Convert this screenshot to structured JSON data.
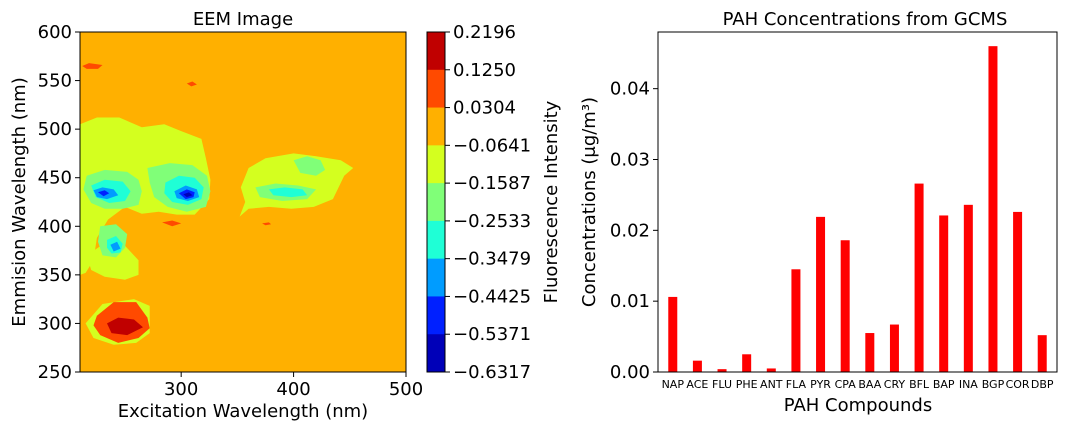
{
  "chart_data": [
    {
      "type": "contour",
      "title": "EEM Image",
      "xlabel": "Excitation Wavelength (nm)",
      "ylabel": "Emmision Wavelength (nm)",
      "xlim": [
        210,
        500
      ],
      "ylim": [
        250,
        600
      ],
      "xticks": [
        300,
        400,
        500
      ],
      "yticks": [
        250,
        300,
        350,
        400,
        450,
        500,
        550,
        600
      ],
      "background_level_color": "#ffb000",
      "colorbar": {
        "label": "Fluorescence Intensity",
        "tick_labels": [
          "0.2196",
          "0.1250",
          "0.0304",
          "−0.0641",
          "−0.1587",
          "−0.2533",
          "−0.3479",
          "−0.4425",
          "−0.5371",
          "−0.6317"
        ],
        "band_colors_top_to_bottom": [
          "#c00000",
          "#ff4a00",
          "#ffb000",
          "#d4ff1f",
          "#80ff78",
          "#1fffd6",
          "#009cff",
          "#0020ff",
          "#0000b8"
        ]
      },
      "regions": [
        {
          "color": "#d4ff1f",
          "points": [
            [
              210,
              505
            ],
            [
              225,
              512
            ],
            [
              245,
              512
            ],
            [
              265,
              502
            ],
            [
              285,
              505
            ],
            [
              300,
              498
            ],
            [
              318,
              490
            ],
            [
              322,
              470
            ],
            [
              326,
              448
            ],
            [
              325,
              428
            ],
            [
              312,
              412
            ],
            [
              296,
              412
            ],
            [
              280,
              415
            ],
            [
              265,
              413
            ],
            [
              250,
              420
            ],
            [
              235,
              407
            ],
            [
              225,
              388
            ],
            [
              222,
              365
            ],
            [
              215,
              352
            ],
            [
              210,
              350
            ]
          ]
        },
        {
          "color": "#d4ff1f",
          "points": [
            [
              216,
              370
            ],
            [
              235,
              385
            ],
            [
              250,
              380
            ],
            [
              262,
              365
            ],
            [
              262,
              350
            ],
            [
              250,
              345
            ],
            [
              232,
              348
            ],
            [
              220,
              355
            ]
          ]
        },
        {
          "color": "#d4ff1f",
          "points": [
            [
              215,
              300
            ],
            [
              230,
              320
            ],
            [
              258,
              325
            ],
            [
              272,
              318
            ],
            [
              272,
              290
            ],
            [
              260,
              280
            ],
            [
              240,
              278
            ],
            [
              222,
              285
            ]
          ]
        },
        {
          "color": "#d4ff1f",
          "points": [
            [
              360,
              460
            ],
            [
              375,
              470
            ],
            [
              400,
              475
            ],
            [
              420,
              472
            ],
            [
              442,
              468
            ],
            [
              453,
              460
            ],
            [
              445,
              452
            ],
            [
              440,
              440
            ],
            [
              435,
              428
            ],
            [
              418,
              420
            ],
            [
              398,
              418
            ],
            [
              378,
              420
            ],
            [
              360,
              418
            ],
            [
              352,
              410
            ],
            [
              357,
              425
            ],
            [
              353,
              440
            ]
          ]
        },
        {
          "color": "#80ff78",
          "points": [
            [
              216,
              452
            ],
            [
              232,
              458
            ],
            [
              252,
              456
            ],
            [
              262,
              448
            ],
            [
              265,
              436
            ],
            [
              262,
              422
            ],
            [
              248,
              418
            ],
            [
              232,
              418
            ],
            [
              220,
              424
            ],
            [
              213,
              438
            ]
          ]
        },
        {
          "color": "#80ff78",
          "points": [
            [
              270,
              460
            ],
            [
              290,
              465
            ],
            [
              310,
              463
            ],
            [
              323,
              452
            ],
            [
              326,
              436
            ],
            [
              322,
              420
            ],
            [
              305,
              415
            ],
            [
              288,
              420
            ],
            [
              276,
              430
            ],
            [
              272,
              445
            ]
          ]
        },
        {
          "color": "#80ff78",
          "points": [
            [
              228,
              400
            ],
            [
              242,
              402
            ],
            [
              252,
              392
            ],
            [
              250,
              378
            ],
            [
              242,
              368
            ],
            [
              230,
              370
            ],
            [
              226,
              384
            ]
          ]
        },
        {
          "color": "#80ff78",
          "points": [
            [
              400,
              468
            ],
            [
              412,
              472
            ],
            [
              424,
              468
            ],
            [
              428,
              458
            ],
            [
              420,
              452
            ],
            [
              406,
              455
            ]
          ]
        },
        {
          "color": "#80ff78",
          "points": [
            [
              366,
              440
            ],
            [
              384,
              444
            ],
            [
              404,
              442
            ],
            [
              420,
              438
            ],
            [
              412,
              428
            ],
            [
              390,
              426
            ],
            [
              370,
              430
            ]
          ]
        },
        {
          "color": "#1fffd6",
          "points": [
            [
              220,
              442
            ],
            [
              232,
              448
            ],
            [
              248,
              446
            ],
            [
              255,
              436
            ],
            [
              250,
              426
            ],
            [
              236,
              424
            ],
            [
              224,
              430
            ]
          ]
        },
        {
          "color": "#1fffd6",
          "points": [
            [
              286,
              445
            ],
            [
              298,
              452
            ],
            [
              312,
              450
            ],
            [
              320,
              440
            ],
            [
              318,
              428
            ],
            [
              306,
              422
            ],
            [
              292,
              425
            ],
            [
              285,
              434
            ]
          ]
        },
        {
          "color": "#1fffd6",
          "points": [
            [
              234,
              386
            ],
            [
              242,
              390
            ],
            [
              248,
              382
            ],
            [
              246,
              373
            ],
            [
              238,
              372
            ],
            [
              234,
              378
            ]
          ]
        },
        {
          "color": "#1fffd6",
          "points": [
            [
              378,
              438
            ],
            [
              392,
              440
            ],
            [
              408,
              438
            ],
            [
              412,
              432
            ],
            [
              398,
              430
            ],
            [
              382,
              432
            ]
          ]
        },
        {
          "color": "#009cff",
          "points": [
            [
              222,
              437
            ],
            [
              230,
              440
            ],
            [
              240,
              438
            ],
            [
              244,
              432
            ],
            [
              234,
              428
            ],
            [
              225,
              430
            ]
          ]
        },
        {
          "color": "#009cff",
          "points": [
            [
              294,
              436
            ],
            [
              304,
              442
            ],
            [
              314,
              438
            ],
            [
              316,
              430
            ],
            [
              306,
              426
            ],
            [
              296,
              429
            ]
          ]
        },
        {
          "color": "#009cff",
          "points": [
            [
              237,
              381
            ],
            [
              243,
              384
            ],
            [
              246,
              377
            ],
            [
              240,
              374
            ]
          ]
        },
        {
          "color": "#0020ff",
          "points": [
            [
              298,
              434
            ],
            [
              305,
              438
            ],
            [
              312,
              435
            ],
            [
              311,
              430
            ],
            [
              304,
              428
            ]
          ]
        },
        {
          "color": "#0000b8",
          "points": [
            [
              302,
              433
            ],
            [
              307,
              435
            ],
            [
              310,
              432
            ],
            [
              305,
              430
            ]
          ]
        },
        {
          "color": "#0020ff",
          "points": [
            [
              226,
              435
            ],
            [
              232,
              437
            ],
            [
              236,
              434
            ],
            [
              231,
              431
            ]
          ]
        },
        {
          "color": "#ff4a00",
          "points": [
            [
              225,
              308
            ],
            [
              240,
              322
            ],
            [
              260,
              322
            ],
            [
              270,
              306
            ],
            [
              272,
              295
            ],
            [
              262,
              285
            ],
            [
              244,
              280
            ],
            [
              228,
              288
            ],
            [
              222,
              298
            ]
          ]
        },
        {
          "color": "#c00000",
          "points": [
            [
              234,
              300
            ],
            [
              244,
              306
            ],
            [
              258,
              304
            ],
            [
              266,
              296
            ],
            [
              252,
              288
            ],
            [
              238,
              290
            ]
          ]
        },
        {
          "color": "#ff4a00",
          "points": [
            [
              212,
              565
            ],
            [
              218,
              568
            ],
            [
              230,
              566
            ],
            [
              226,
              562
            ],
            [
              216,
              562
            ]
          ]
        },
        {
          "color": "#ff4a00",
          "points": [
            [
              283,
              404
            ],
            [
              292,
              406
            ],
            [
              300,
              403
            ],
            [
              292,
              400
            ]
          ]
        },
        {
          "color": "#ff4a00",
          "points": [
            [
              305,
              547
            ],
            [
              310,
              549
            ],
            [
              314,
              546
            ],
            [
              309,
              544
            ]
          ]
        },
        {
          "color": "#ff4a00",
          "points": [
            [
              372,
              403
            ],
            [
              378,
              404
            ],
            [
              380,
              402
            ],
            [
              375,
              401
            ]
          ]
        }
      ]
    },
    {
      "type": "bar",
      "title": "PAH Concentrations from GCMS",
      "xlabel": "PAH Compounds",
      "ylabel": "Concentrations (μg/m³)",
      "categories": [
        "NAP",
        "ACE",
        "FLU",
        "PHE",
        "ANT",
        "FLA",
        "PYR",
        "CPA",
        "BAA",
        "CRY",
        "BFL",
        "BAP",
        "INA",
        "BGP",
        "COR",
        "DBP"
      ],
      "values": [
        0.0106,
        0.0016,
        0.0004,
        0.0025,
        0.0005,
        0.0145,
        0.0219,
        0.0186,
        0.0055,
        0.0067,
        0.0266,
        0.0221,
        0.0236,
        0.046,
        0.0226,
        0.0052
      ],
      "ylim": [
        0,
        0.048
      ],
      "yticks": [
        "0.00",
        "0.01",
        "0.02",
        "0.03",
        "0.04"
      ],
      "bar_color": "#ff0000"
    }
  ]
}
